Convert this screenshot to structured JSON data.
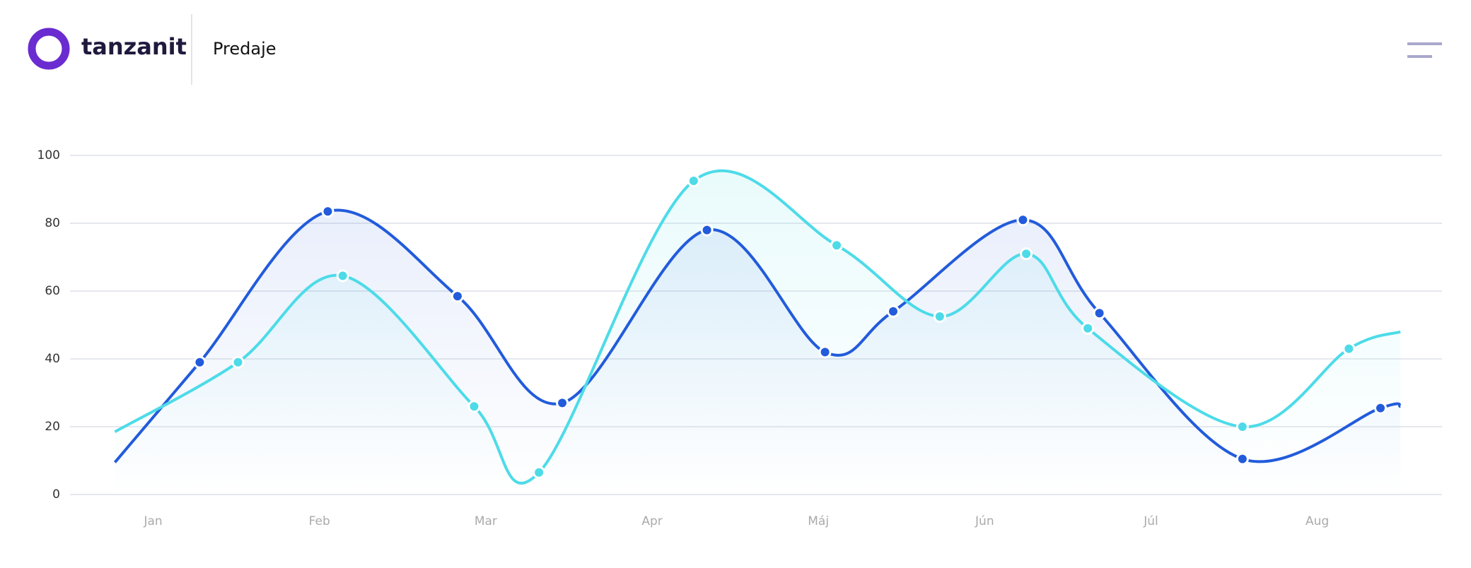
{
  "header": {
    "brand": "tanzanit",
    "title": "Predaje"
  },
  "chart_data": {
    "type": "line",
    "xlim": [
      -0.5,
      7.75
    ],
    "xticks": [
      {
        "value": 0,
        "label": "Jan"
      },
      {
        "value": 1,
        "label": "Feb"
      },
      {
        "value": 2,
        "label": "Mar"
      },
      {
        "value": 3,
        "label": "Apr"
      },
      {
        "value": 4,
        "label": "Máj"
      },
      {
        "value": 5,
        "label": "Jún"
      },
      {
        "value": 6,
        "label": "Júl"
      },
      {
        "value": 7,
        "label": "Aug"
      }
    ],
    "ylim": [
      0,
      100
    ],
    "yticks": [
      0,
      20,
      40,
      60,
      80,
      100
    ],
    "grid": true,
    "series": [
      {
        "color": "#225bdb",
        "x": [
          -0.23,
          0.28,
          1.05,
          1.83,
          2.46,
          3.33,
          4.04,
          4.45,
          5.23,
          5.69,
          6.55,
          7.38,
          7.5
        ],
        "values": [
          9.5,
          39,
          83.5,
          58.5,
          27,
          78,
          42,
          54,
          81,
          53.5,
          10.5,
          25.5,
          26
        ]
      },
      {
        "color": "#4ddbe8",
        "x": [
          -0.23,
          0.51,
          1.14,
          1.93,
          2.32,
          3.25,
          4.11,
          4.73,
          5.25,
          5.62,
          6.55,
          7.19,
          7.5
        ],
        "values": [
          18.5,
          39,
          64.5,
          26,
          6.5,
          92.5,
          73.5,
          52.5,
          71,
          49,
          20,
          43,
          48
        ]
      }
    ]
  }
}
